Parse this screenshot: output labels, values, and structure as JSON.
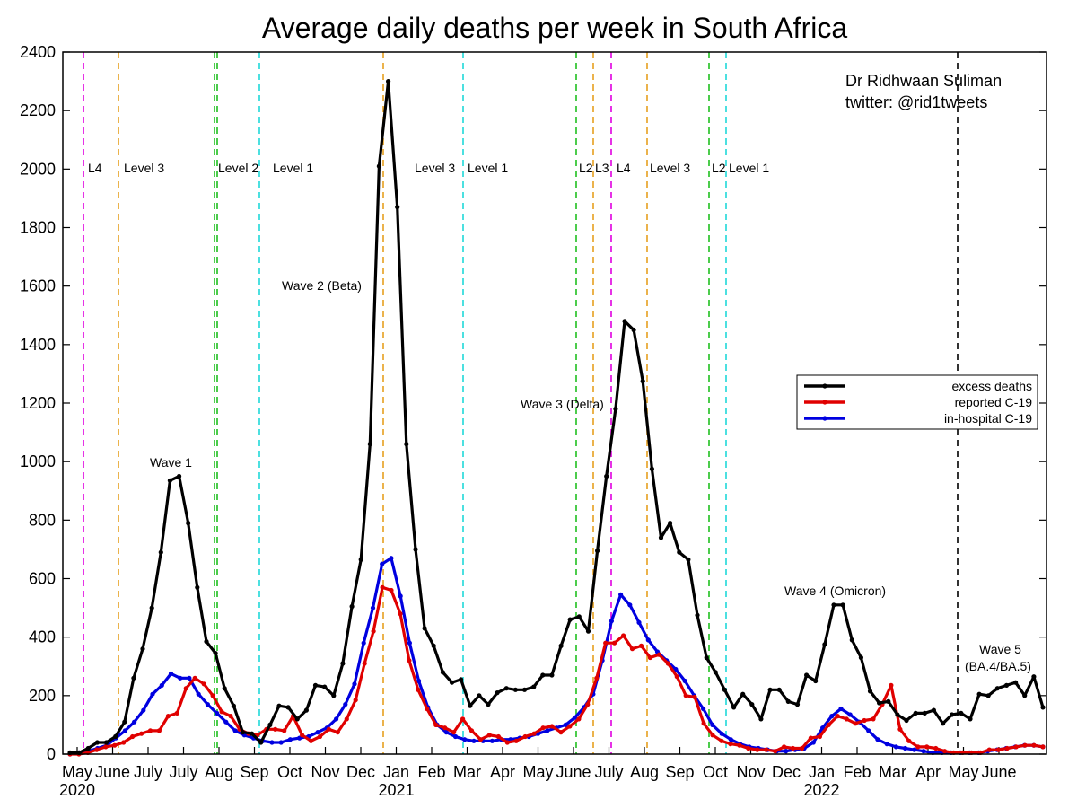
{
  "chart_data": {
    "type": "line",
    "title": "Average daily deaths per week in South Africa",
    "xlabel": "",
    "ylabel": "",
    "ylim": [
      0,
      2400
    ],
    "yticks": [
      0,
      200,
      400,
      600,
      800,
      1000,
      1200,
      1400,
      1600,
      1800,
      2000,
      2200,
      2400
    ],
    "grid": false,
    "legend_position": "right",
    "author": "Dr Ridhwaan Suliman",
    "twitter": "twitter: @rid1tweets",
    "month_labels": [
      "May",
      "June",
      "July",
      "July",
      "Aug",
      "Sep",
      "Oct",
      "Nov",
      "Dec",
      "Jan",
      "Feb",
      "Mar",
      "Apr",
      "May",
      "June",
      "July",
      "Aug",
      "Sep",
      "Oct",
      "Nov",
      "Dec",
      "Jan",
      "Feb",
      "Mar",
      "Apr",
      "May",
      "June"
    ],
    "year_labels": [
      {
        "text": "2020",
        "under_label_index": 0
      },
      {
        "text": "2021",
        "under_label_index": 9
      },
      {
        "text": "2022",
        "under_label_index": 21
      }
    ],
    "lockdown_labels": [
      "L4",
      "Level 3",
      "Level 2",
      "Level 1",
      "Level 3",
      "Level 1",
      "L2",
      "L3",
      "L4",
      "Level 3",
      "L2",
      "Level 1"
    ],
    "wave_labels": [
      "Wave 1",
      "Wave 2 (Beta)",
      "Wave 3 (Delta)",
      "Wave 4 (Omicron)",
      "Wave 5",
      "(BA.4/BA.5)"
    ],
    "colors": {
      "excess": "#000000",
      "reported": "#e00000",
      "hospital": "#0000e0",
      "magenta": "#e000e0",
      "orange": "#e6a020",
      "green": "#20c020",
      "cyan": "#20d8d8"
    },
    "series": [
      {
        "name": "excess deaths",
        "color": "#000000",
        "values": [
          5,
          5,
          20,
          40,
          40,
          60,
          110,
          260,
          360,
          500,
          690,
          935,
          950,
          790,
          570,
          385,
          345,
          225,
          165,
          75,
          70,
          40,
          100,
          165,
          160,
          120,
          150,
          235,
          230,
          200,
          310,
          505,
          665,
          1060,
          2010,
          2300,
          1870,
          1060,
          700,
          430,
          370,
          280,
          245,
          255,
          165,
          200,
          170,
          210,
          225,
          220,
          220,
          230,
          270,
          270,
          370,
          460,
          470,
          420,
          695,
          950,
          1180,
          1480,
          1450,
          1275,
          975,
          740,
          790,
          690,
          665,
          475,
          330,
          280,
          220,
          160,
          205,
          170,
          120,
          220,
          220,
          180,
          170,
          270,
          250,
          375,
          510,
          510,
          390,
          330,
          215,
          175,
          180,
          135,
          115,
          140,
          140,
          150,
          105,
          135,
          140,
          120,
          205,
          200,
          225,
          235,
          245,
          200,
          265,
          160
        ]
      },
      {
        "name": "reported C-19",
        "color": "#e00000",
        "values": [
          0,
          0,
          5,
          15,
          25,
          30,
          40,
          60,
          70,
          80,
          80,
          130,
          140,
          225,
          260,
          240,
          200,
          145,
          130,
          85,
          70,
          65,
          85,
          85,
          80,
          130,
          65,
          45,
          60,
          85,
          75,
          120,
          185,
          310,
          420,
          570,
          560,
          480,
          320,
          220,
          155,
          100,
          90,
          75,
          120,
          80,
          50,
          65,
          60,
          40,
          45,
          60,
          70,
          90,
          95,
          75,
          95,
          120,
          170,
          260,
          380,
          380,
          405,
          360,
          370,
          330,
          340,
          310,
          265,
          200,
          195,
          105,
          65,
          45,
          35,
          30,
          20,
          15,
          15,
          10,
          25,
          20,
          20,
          55,
          60,
          100,
          130,
          120,
          105,
          115,
          120,
          170,
          235,
          85,
          45,
          25,
          25,
          20,
          10,
          5,
          5,
          5,
          5,
          15,
          15,
          20,
          25,
          30,
          30,
          25
        ]
      },
      {
        "name": "in-hospital C-19",
        "color": "#0000e0",
        "values": [
          0,
          5,
          10,
          20,
          30,
          55,
          80,
          110,
          150,
          205,
          235,
          275,
          260,
          260,
          205,
          170,
          140,
          110,
          80,
          65,
          55,
          45,
          40,
          40,
          50,
          55,
          60,
          75,
          90,
          120,
          170,
          240,
          380,
          500,
          650,
          670,
          540,
          380,
          250,
          160,
          100,
          75,
          60,
          50,
          45,
          45,
          45,
          50,
          50,
          55,
          60,
          70,
          80,
          90,
          100,
          125,
          160,
          205,
          320,
          455,
          545,
          510,
          450,
          390,
          350,
          320,
          290,
          250,
          200,
          155,
          100,
          70,
          50,
          35,
          25,
          20,
          15,
          10,
          10,
          15,
          20,
          40,
          90,
          130,
          155,
          135,
          110,
          80,
          50,
          35,
          25,
          20,
          15,
          10,
          5,
          5,
          5,
          5,
          5,
          5,
          10,
          15,
          20,
          25,
          30,
          30,
          25
        ]
      }
    ]
  }
}
